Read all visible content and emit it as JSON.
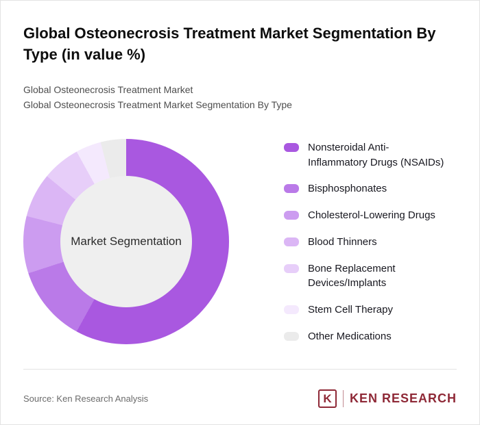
{
  "header": {
    "title": "Global Osteonecrosis Treatment Market Segmentation By Type (in value %)",
    "subtitle_line1": "Global Osteonecrosis Treatment Market",
    "subtitle_line2": "Global Osteonecrosis Treatment Market Segmentation By Type"
  },
  "chart_data": {
    "type": "pie",
    "donut": true,
    "title": "Global Osteonecrosis Treatment Market Segmentation By Type (in value %)",
    "units": "%",
    "center_label": "Market Segmentation",
    "legend_position": "right",
    "start_angle_deg": 0,
    "direction": "clockwise",
    "hole_color": "#efefef",
    "segments": [
      {
        "label": "Nonsteroidal Anti-\nInflammatory Drugs (NSAIDs)",
        "value": 58,
        "color": "#a958e0"
      },
      {
        "label": "Bisphosphonates",
        "value": 12,
        "color": "#ba7ae8"
      },
      {
        "label": "Cholesterol-Lowering Drugs",
        "value": 9,
        "color": "#cc9cf0"
      },
      {
        "label": "Blood Thinners",
        "value": 7,
        "color": "#dbb6f5"
      },
      {
        "label": "Bone Replacement\nDevices/Implants",
        "value": 6,
        "color": "#e7cef9"
      },
      {
        "label": "Stem Cell Therapy",
        "value": 4,
        "color": "#f4e9fd"
      },
      {
        "label": "Other Medications",
        "value": 4,
        "color": "#ebebeb"
      }
    ]
  },
  "footer": {
    "source": "Source: Ken Research Analysis",
    "logo": {
      "letter": "K",
      "brand": "KEN RESEARCH",
      "color": "#8e2836"
    }
  }
}
